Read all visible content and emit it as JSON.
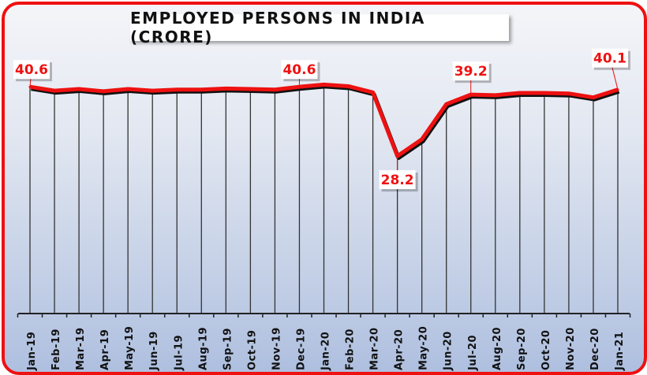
{
  "chart_data": {
    "type": "line",
    "title": "EMPLOYED PERSONS IN INDIA (CRORE)",
    "xlabel": "",
    "ylabel": "",
    "ylim": [
      0,
      45
    ],
    "grid": false,
    "legend": "none",
    "categories": [
      "Jan-19",
      "Feb-19",
      "Mar-19",
      "Apr-19",
      "May-19",
      "Jun-19",
      "Jul-19",
      "Aug-19",
      "Sep-19",
      "Oct-19",
      "Nov-19",
      "Dec-19",
      "Jan-20",
      "Feb-20",
      "Mar-20",
      "Apr-20",
      "May-20",
      "Jun-20",
      "Jul-20",
      "Aug-20",
      "Sep-20",
      "Oct-20",
      "Nov-20",
      "Dec-20",
      "Jan-21"
    ],
    "series": [
      {
        "name": "Employed persons (crore)",
        "values": [
          40.6,
          39.9,
          40.2,
          39.8,
          40.2,
          39.9,
          40.1,
          40.1,
          40.3,
          40.2,
          40.1,
          40.6,
          41.0,
          40.7,
          39.6,
          28.2,
          31.2,
          37.5,
          39.2,
          39.1,
          39.5,
          39.5,
          39.4,
          38.7,
          40.1
        ]
      }
    ],
    "annotations": [
      {
        "category": "Jan-19",
        "text": "40.6"
      },
      {
        "category": "Dec-19",
        "text": "40.6"
      },
      {
        "category": "Apr-20",
        "text": "28.2"
      },
      {
        "category": "Jul-20",
        "text": "39.2"
      },
      {
        "category": "Jan-21",
        "text": "40.1"
      }
    ],
    "colors": {
      "line": "#ee1111",
      "shadow": "#111111",
      "label": "#ee1111",
      "border": "#ee1111"
    }
  }
}
